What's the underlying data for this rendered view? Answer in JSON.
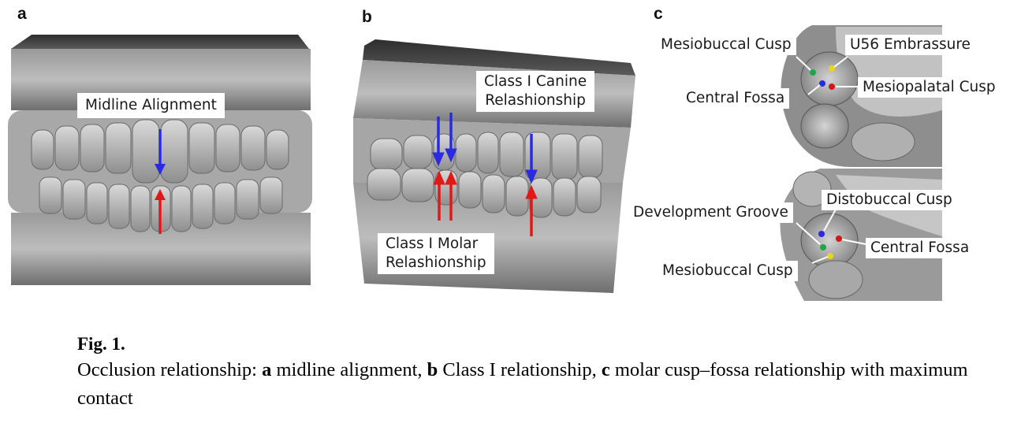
{
  "panels": [
    {
      "letter": "a",
      "labels": [
        "Midline Alignment"
      ]
    },
    {
      "letter": "b",
      "labels": [
        "Class I Canine",
        "Relashionship",
        "Class I Molar",
        "Relashionship"
      ]
    },
    {
      "letter": "c",
      "upper_labels": [
        "Mesiobuccal Cusp",
        "U56 Embrassure",
        "Central Fossa",
        "Mesiopalatal Cusp"
      ],
      "lower_labels": [
        "Distobuccal Cusp",
        "Development Groove",
        "Central Fossa",
        "Mesiobuccal Cusp"
      ]
    }
  ],
  "colors": {
    "upper_arrow": "#2a2ae0",
    "lower_arrow": "#e01818",
    "marker_green": "#1aa84a",
    "marker_yellow": "#e8d61a",
    "marker_blue": "#2a2ae0",
    "marker_red": "#d01818"
  },
  "caption": {
    "title": "Fig. 1.",
    "lead": "Occlusion relationship: ",
    "a_letter": "a",
    "a_text": " midline alignment, ",
    "b_letter": "b",
    "b_text": " Class I relationship, ",
    "c_letter": "c",
    "c_text": " molar cusp–fossa relationship with maximum contact"
  }
}
